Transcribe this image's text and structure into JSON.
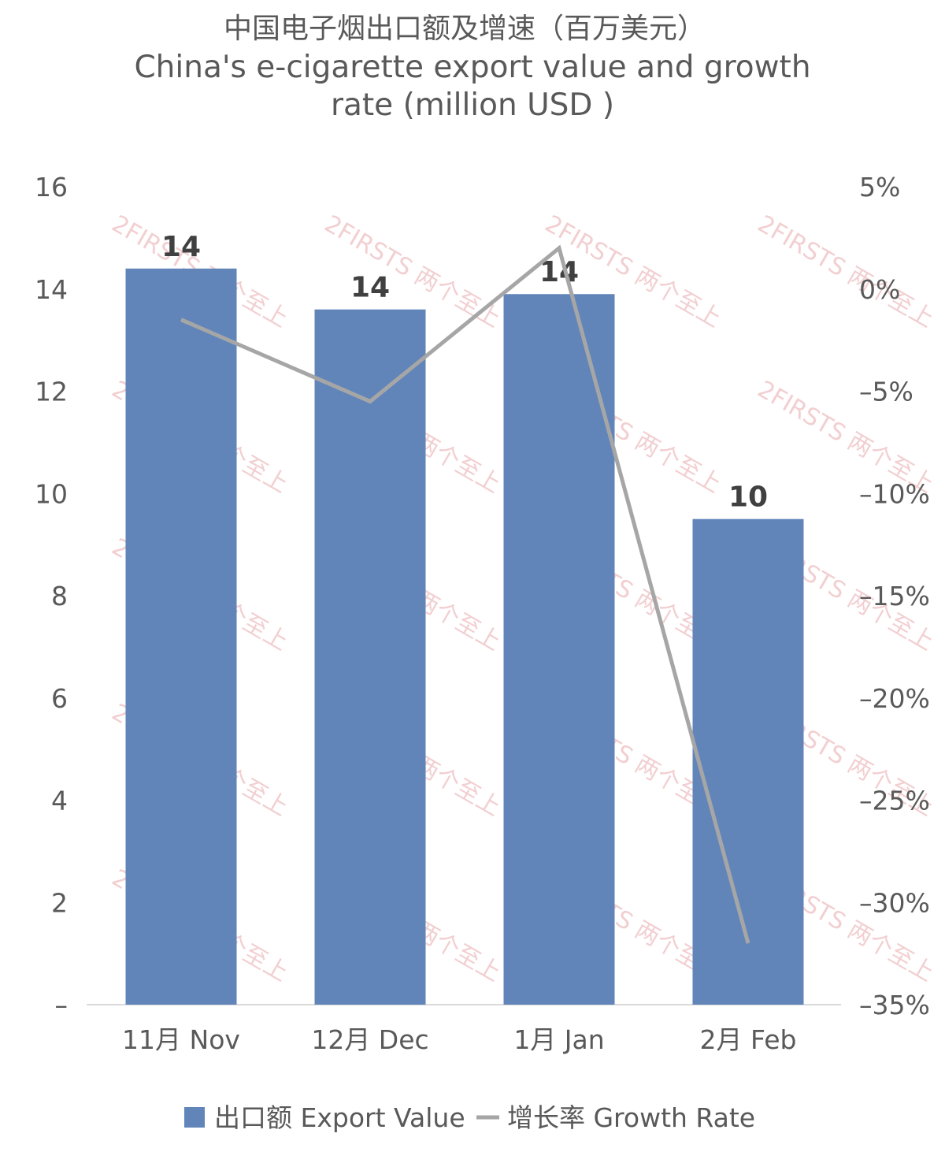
{
  "chart_data": {
    "type": "bar",
    "title": "中国电子烟出口额及增速（百万美元）",
    "subtitle_lines": [
      "China's e-cigarette export value and growth",
      "rate (million USD )"
    ],
    "categories": [
      "11月 Nov",
      "12月 Dec",
      "1月 Jan",
      "2月 Feb"
    ],
    "series": [
      {
        "name": "出口额 Export Value",
        "kind": "bar",
        "axis": "left",
        "color": "#6185b9",
        "values": [
          14.4,
          13.6,
          13.9,
          9.5
        ],
        "labels": [
          "14",
          "14",
          "14",
          "10"
        ]
      },
      {
        "name": "增长率 Growth Rate",
        "kind": "line",
        "axis": "right",
        "color": "#a6a6a6",
        "values": [
          -1.5,
          -5.5,
          2.0,
          -32.0
        ]
      }
    ],
    "y_left": {
      "min": 0,
      "max": 16,
      "ticks": [
        "–",
        "2",
        "4",
        "6",
        "8",
        "10",
        "12",
        "14",
        "16"
      ]
    },
    "y_right": {
      "min": -35,
      "max": 5,
      "ticks": [
        "–35%",
        "–30%",
        "–25%",
        "–20%",
        "–15%",
        "–10%",
        "–5%",
        "0%",
        "5%"
      ]
    },
    "legend_position": "bottom",
    "grid": false,
    "watermark": "2FIRSTS 两个至上"
  }
}
